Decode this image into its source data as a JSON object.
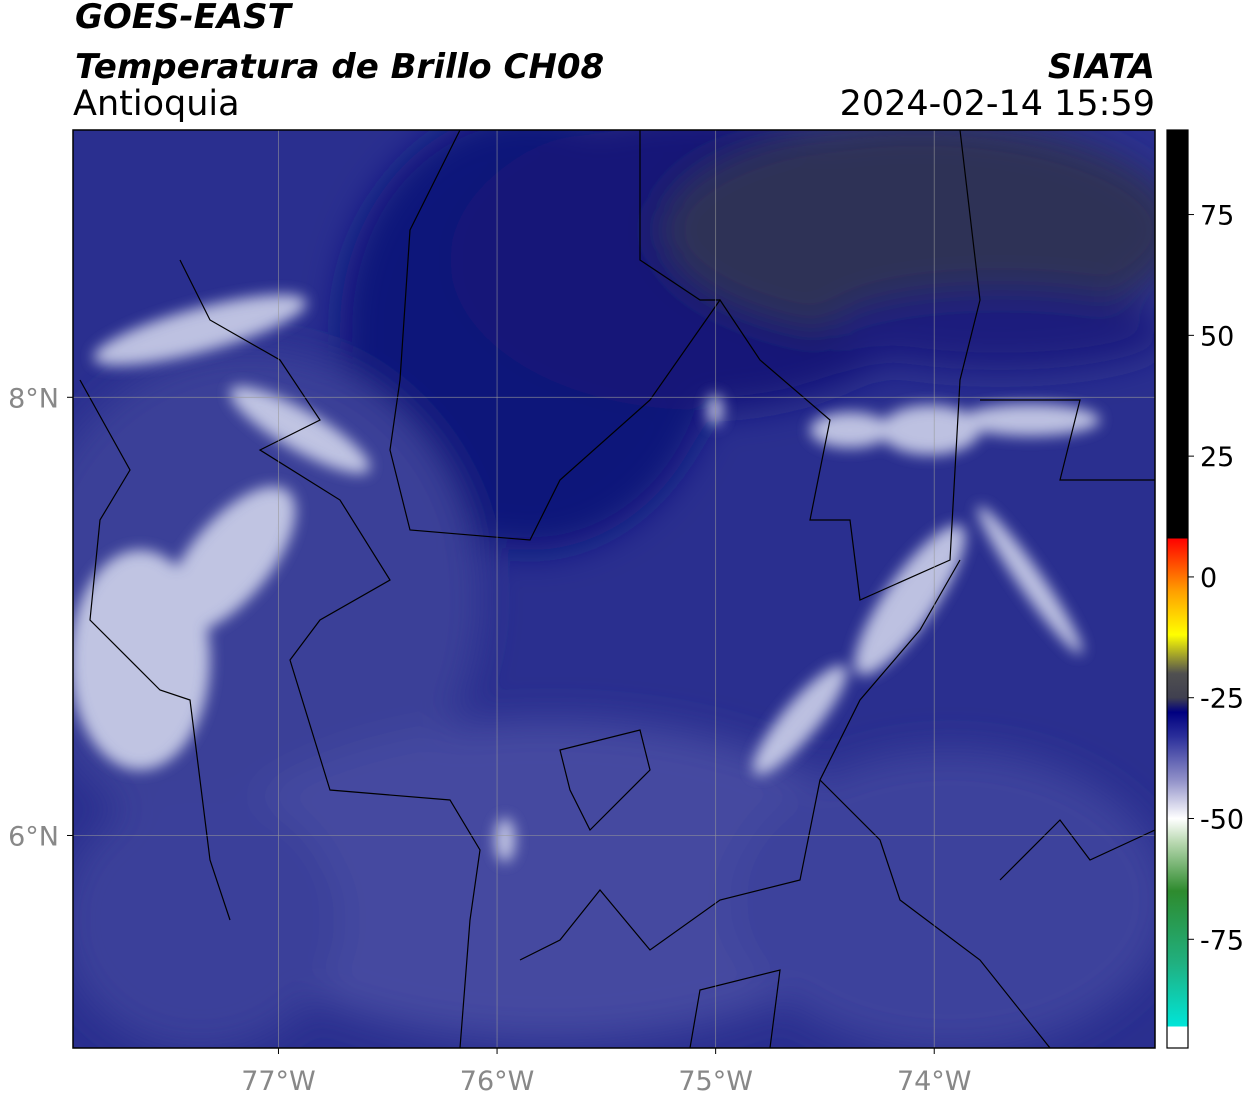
{
  "header": {
    "title": "GOES-EAST",
    "subtitle": "Temperatura de Brillo CH08",
    "region": "Antioquia",
    "source": "SIATA",
    "datetime": "2024-02-14 15:59"
  },
  "map": {
    "xlim": [
      -77.94,
      -72.99
    ],
    "ylim": [
      5.03,
      9.22
    ],
    "xticks": [
      {
        "value": -77,
        "label": "77°W"
      },
      {
        "value": -76,
        "label": "76°W"
      },
      {
        "value": -75,
        "label": "75°W"
      },
      {
        "value": -74,
        "label": "74°W"
      }
    ],
    "yticks": [
      {
        "value": 6,
        "label": "6°N"
      },
      {
        "value": 8,
        "label": "8°N"
      }
    ],
    "grid": true
  },
  "colorbar": {
    "lim": [
      -97.5,
      92.5
    ],
    "ticks": [
      -75,
      -50,
      -25,
      0,
      25,
      50,
      75
    ],
    "colormap": [
      {
        "value": -97.5,
        "color": "#ffffff"
      },
      {
        "value": -93,
        "color": "#ffffff"
      },
      {
        "value": -93,
        "color": "#00e5d8"
      },
      {
        "value": -80,
        "color": "#20b080"
      },
      {
        "value": -65,
        "color": "#2e8b2e"
      },
      {
        "value": -55,
        "color": "#b8d8b0"
      },
      {
        "value": -50,
        "color": "#ffffff"
      },
      {
        "value": -42,
        "color": "#9090c8"
      },
      {
        "value": -33,
        "color": "#2a2e9a"
      },
      {
        "value": -28,
        "color": "#000080"
      },
      {
        "value": -25,
        "color": "#404050"
      },
      {
        "value": -20,
        "color": "#505050"
      },
      {
        "value": -12,
        "color": "#ffff00"
      },
      {
        "value": -3,
        "color": "#ffa000"
      },
      {
        "value": 8,
        "color": "#ff0000"
      },
      {
        "value": 8,
        "color": "#000000"
      },
      {
        "value": 92.5,
        "color": "#000000"
      }
    ]
  }
}
